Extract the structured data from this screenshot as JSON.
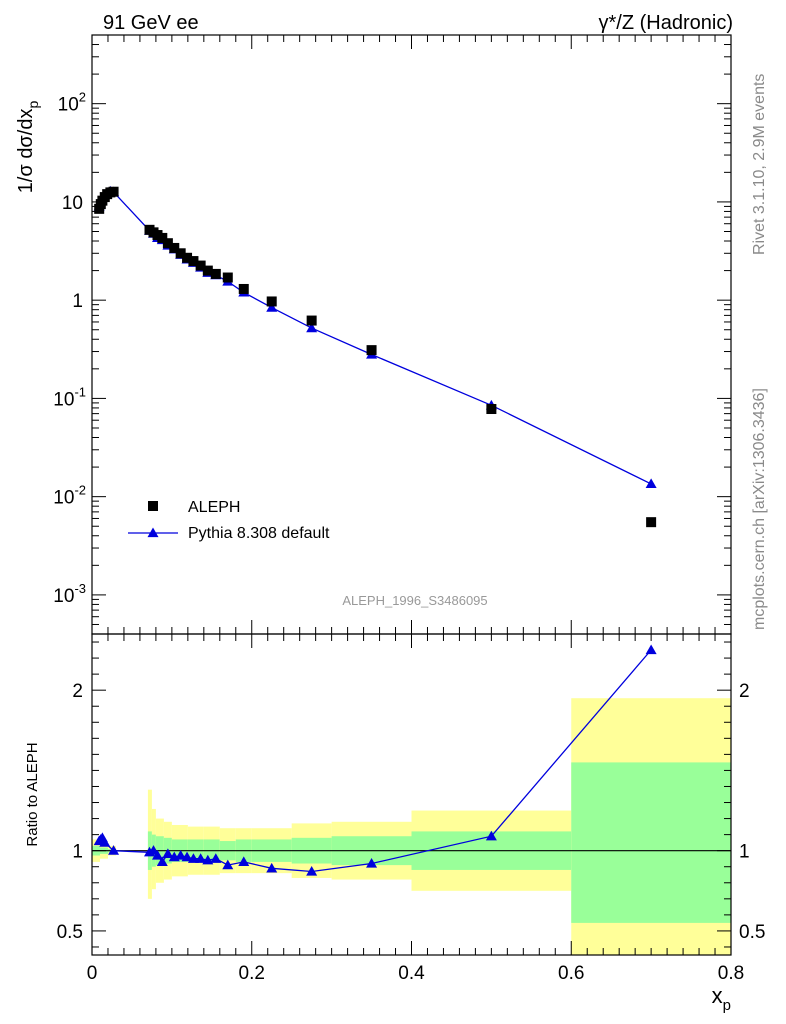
{
  "header": {
    "left_title": "91 GeV ee",
    "right_title": "γ*/Z (Hadronic)"
  },
  "side_labels": {
    "rivet": "Rivet 3.1.10,  2.9M events",
    "mcplots": "mcplots.cern.ch [arXiv:1306.3436]"
  },
  "watermark": "ALEPH_1996_S3486095",
  "colors": {
    "data": "#000000",
    "mc": "#0000dd",
    "band_outer": "#ffff99",
    "band_inner": "#99ff99",
    "reference_line": "#000000"
  },
  "chart_data": [
    {
      "type": "scatter",
      "name": "main-panel",
      "ylabel": "1/σ dσ/dx_p",
      "log_y": true,
      "xlim": [
        0,
        0.8
      ],
      "ylim": [
        0.0004,
        500
      ],
      "y_tick_labels": [
        "10^-3",
        "10^-2",
        "10^-1",
        "1",
        "10",
        "10^2"
      ],
      "legend": {
        "placement": "lower-left",
        "entries": [
          "ALEPH",
          "Pythia 8.308 default"
        ]
      },
      "series": [
        {
          "name": "ALEPH",
          "marker": "square",
          "x": [
            0.009,
            0.011,
            0.013,
            0.016,
            0.019,
            0.023,
            0.027,
            0.072,
            0.077,
            0.082,
            0.088,
            0.095,
            0.103,
            0.111,
            0.119,
            0.127,
            0.136,
            0.145,
            0.155,
            0.17,
            0.19,
            0.225,
            0.275,
            0.35,
            0.5,
            0.7
          ],
          "y": [
            8.5,
            9.5,
            10.3,
            11.2,
            12.0,
            12.5,
            12.7,
            5.2,
            4.9,
            4.6,
            4.3,
            3.8,
            3.4,
            3.0,
            2.7,
            2.5,
            2.25,
            2.0,
            1.85,
            1.7,
            1.3,
            0.97,
            0.62,
            0.31,
            0.078,
            0.0055
          ]
        },
        {
          "name": "Pythia 8.308 default",
          "marker": "triangle",
          "x": [
            0.009,
            0.011,
            0.013,
            0.016,
            0.019,
            0.023,
            0.027,
            0.072,
            0.077,
            0.082,
            0.088,
            0.095,
            0.103,
            0.111,
            0.119,
            0.127,
            0.136,
            0.145,
            0.155,
            0.17,
            0.19,
            0.225,
            0.275,
            0.35,
            0.5,
            0.7
          ],
          "y": [
            9.0,
            10.2,
            11.0,
            11.8,
            12.4,
            12.8,
            12.6,
            5.1,
            4.75,
            4.3,
            4.1,
            3.6,
            3.3,
            2.9,
            2.6,
            2.4,
            2.15,
            1.9,
            1.8,
            1.55,
            1.2,
            0.84,
            0.52,
            0.28,
            0.085,
            0.0135
          ]
        }
      ]
    },
    {
      "type": "line",
      "name": "ratio-panel",
      "ylabel": "Ratio to ALEPH",
      "xlabel": "x_p",
      "xlim": [
        0,
        0.8
      ],
      "ylim": [
        0.35,
        2.35
      ],
      "x_tick_labels": [
        "0",
        "0.2",
        "0.4",
        "0.6",
        "0.8"
      ],
      "y_tick_labels": [
        "0.5",
        "1",
        "2"
      ],
      "bands": [
        {
          "x0": 0.0,
          "x1": 0.01,
          "outer": [
            0.93,
            1.07
          ],
          "inner": [
            0.97,
            1.03
          ]
        },
        {
          "x0": 0.01,
          "x1": 0.02,
          "outer": [
            0.95,
            1.05
          ],
          "inner": [
            0.98,
            1.02
          ]
        },
        {
          "x0": 0.02,
          "x1": 0.03,
          "outer": [
            0.97,
            1.03
          ],
          "inner": [
            0.99,
            1.01
          ]
        },
        {
          "x0": 0.07,
          "x1": 0.075,
          "outer": [
            0.7,
            1.38
          ],
          "inner": [
            0.88,
            1.12
          ]
        },
        {
          "x0": 0.075,
          "x1": 0.08,
          "outer": [
            0.76,
            1.26
          ],
          "inner": [
            0.9,
            1.1
          ]
        },
        {
          "x0": 0.08,
          "x1": 0.09,
          "outer": [
            0.8,
            1.2
          ],
          "inner": [
            0.91,
            1.09
          ]
        },
        {
          "x0": 0.09,
          "x1": 0.1,
          "outer": [
            0.82,
            1.18
          ],
          "inner": [
            0.92,
            1.08
          ]
        },
        {
          "x0": 0.1,
          "x1": 0.12,
          "outer": [
            0.84,
            1.16
          ],
          "inner": [
            0.93,
            1.07
          ]
        },
        {
          "x0": 0.12,
          "x1": 0.14,
          "outer": [
            0.85,
            1.15
          ],
          "inner": [
            0.93,
            1.07
          ]
        },
        {
          "x0": 0.14,
          "x1": 0.16,
          "outer": [
            0.85,
            1.15
          ],
          "inner": [
            0.93,
            1.07
          ]
        },
        {
          "x0": 0.16,
          "x1": 0.18,
          "outer": [
            0.86,
            1.14
          ],
          "inner": [
            0.94,
            1.06
          ]
        },
        {
          "x0": 0.18,
          "x1": 0.2,
          "outer": [
            0.86,
            1.14
          ],
          "inner": [
            0.93,
            1.07
          ]
        },
        {
          "x0": 0.2,
          "x1": 0.25,
          "outer": [
            0.86,
            1.14
          ],
          "inner": [
            0.93,
            1.07
          ]
        },
        {
          "x0": 0.25,
          "x1": 0.3,
          "outer": [
            0.83,
            1.17
          ],
          "inner": [
            0.92,
            1.08
          ]
        },
        {
          "x0": 0.3,
          "x1": 0.4,
          "outer": [
            0.82,
            1.18
          ],
          "inner": [
            0.91,
            1.09
          ]
        },
        {
          "x0": 0.4,
          "x1": 0.6,
          "outer": [
            0.75,
            1.25
          ],
          "inner": [
            0.88,
            1.12
          ]
        },
        {
          "x0": 0.6,
          "x1": 0.8,
          "outer": [
            0.35,
            1.95
          ],
          "inner": [
            0.55,
            1.55
          ]
        }
      ],
      "series": [
        {
          "name": "Pythia 8.308 default",
          "marker": "triangle",
          "x": [
            0.009,
            0.011,
            0.013,
            0.016,
            0.027,
            0.072,
            0.077,
            0.082,
            0.088,
            0.095,
            0.103,
            0.111,
            0.119,
            0.127,
            0.136,
            0.145,
            0.155,
            0.17,
            0.19,
            0.225,
            0.275,
            0.35,
            0.5,
            0.7
          ],
          "y": [
            1.06,
            1.07,
            1.08,
            1.05,
            1.0,
            0.99,
            1.0,
            0.97,
            0.93,
            0.98,
            0.96,
            0.97,
            0.96,
            0.95,
            0.95,
            0.94,
            0.95,
            0.91,
            0.93,
            0.89,
            0.87,
            0.92,
            1.09,
            2.25
          ]
        }
      ]
    }
  ]
}
